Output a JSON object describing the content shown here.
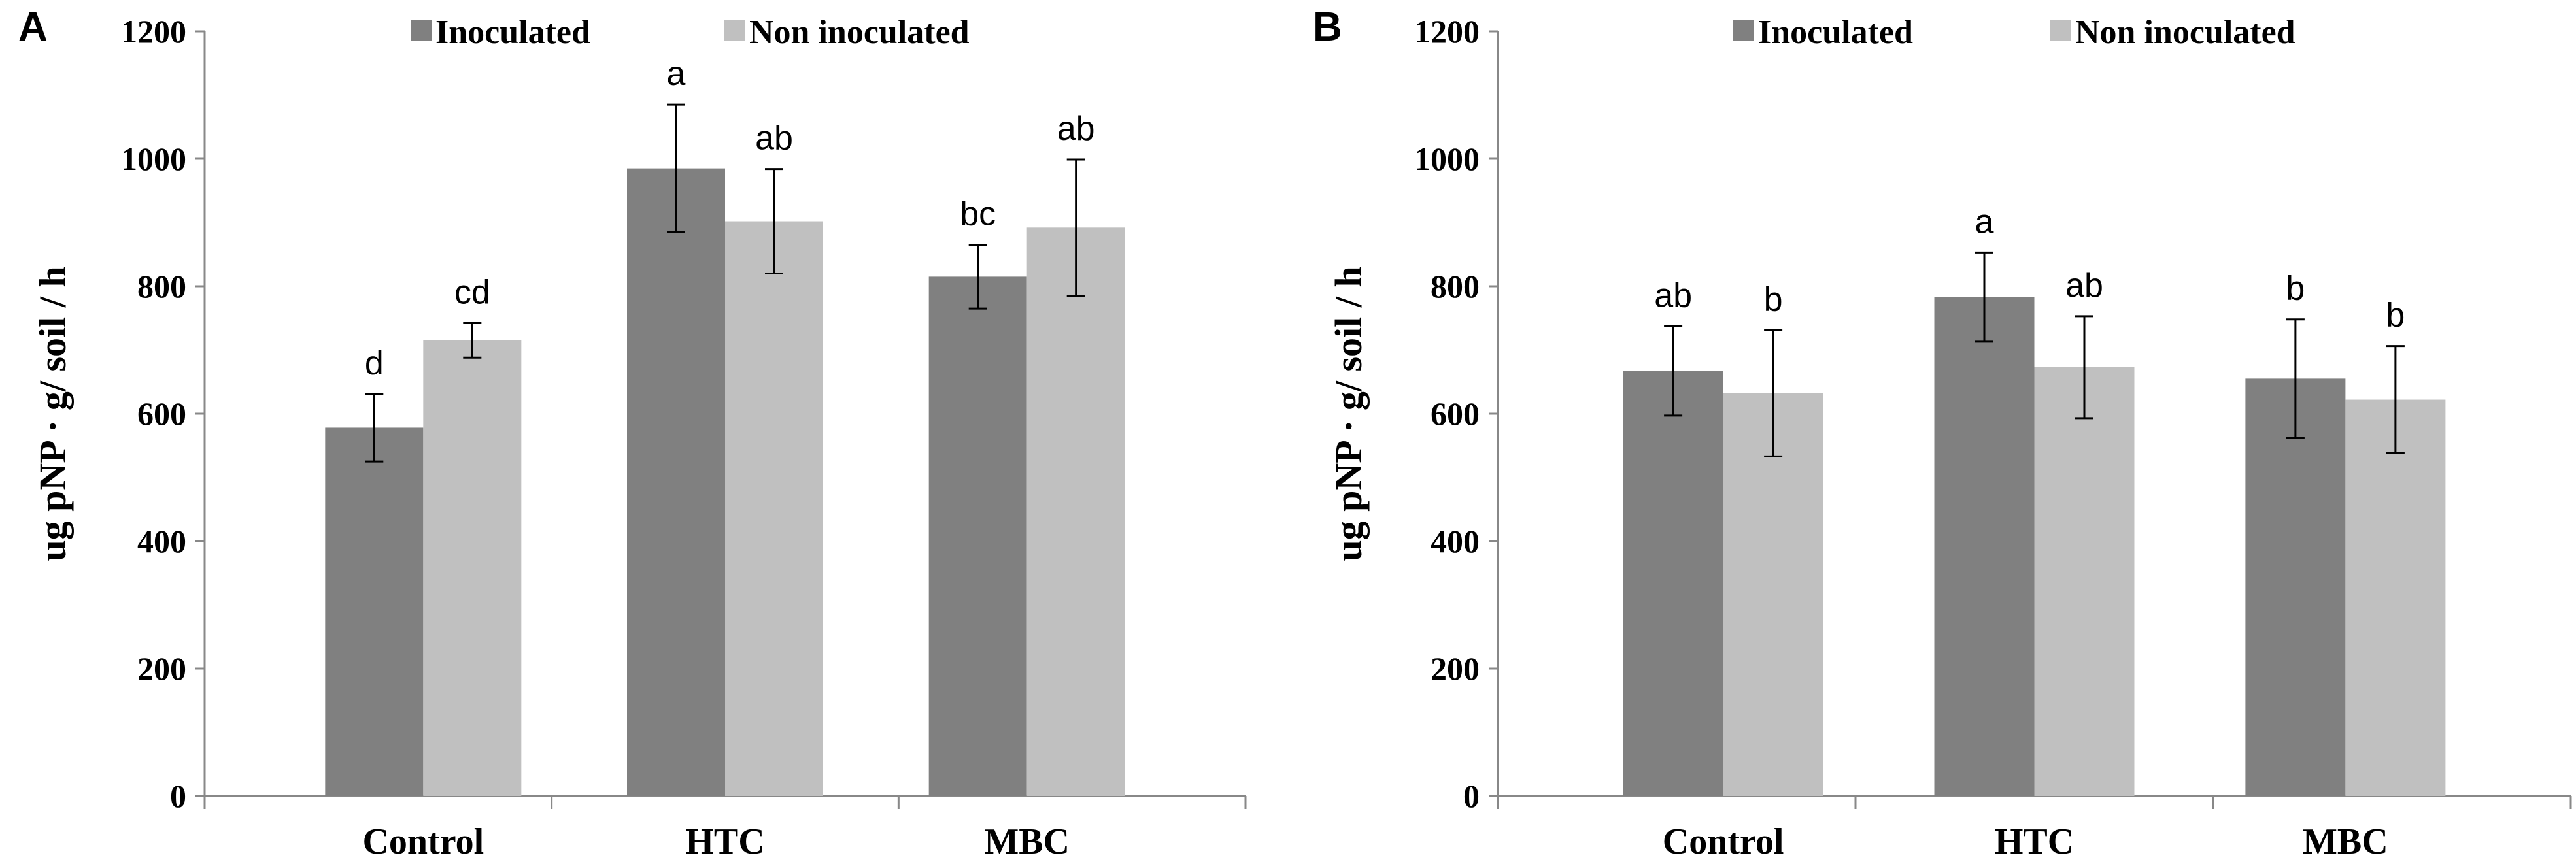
{
  "chart_data": [
    {
      "panel": "A",
      "type": "bar",
      "ylabel": "ug pNP · g/ soil / h",
      "xlabel": "",
      "ylim": [
        0,
        1200
      ],
      "yticks": [
        "0",
        "200",
        "400",
        "600",
        "800",
        "1000",
        "1200"
      ],
      "categories": [
        "Control",
        "HTC",
        "MBC"
      ],
      "legend": [
        "Inoculated",
        "Non inoculated"
      ],
      "series": [
        {
          "name": "Inoculated",
          "color": "#808080",
          "values": [
            578,
            985,
            815
          ],
          "errors": [
            53,
            100,
            50
          ],
          "letters": [
            "d",
            "a",
            "bc"
          ]
        },
        {
          "name": "Non inoculated",
          "color": "#c0c0c0",
          "values": [
            715,
            902,
            892
          ],
          "errors": [
            27,
            82,
            107
          ],
          "letters": [
            "cd",
            "ab",
            "ab"
          ]
        }
      ]
    },
    {
      "panel": "B",
      "type": "bar",
      "ylabel": "ug pNP · g/ soil / h",
      "xlabel": "",
      "ylim": [
        0,
        1200
      ],
      "yticks": [
        "0",
        "200",
        "400",
        "600",
        "800",
        "1000",
        "1200"
      ],
      "categories": [
        "Control",
        "HTC",
        "MBC"
      ],
      "legend": [
        "Inoculated",
        "Non inoculated"
      ],
      "series": [
        {
          "name": "Inoculated",
          "color": "#808080",
          "values": [
            667,
            783,
            655
          ],
          "errors": [
            70,
            70,
            93
          ],
          "letters": [
            "ab",
            "a",
            "b"
          ]
        },
        {
          "name": "Non inoculated",
          "color": "#c0c0c0",
          "values": [
            632,
            673,
            622
          ],
          "errors": [
            99,
            80,
            84
          ],
          "letters": [
            "b",
            "ab",
            "b"
          ]
        }
      ]
    }
  ]
}
